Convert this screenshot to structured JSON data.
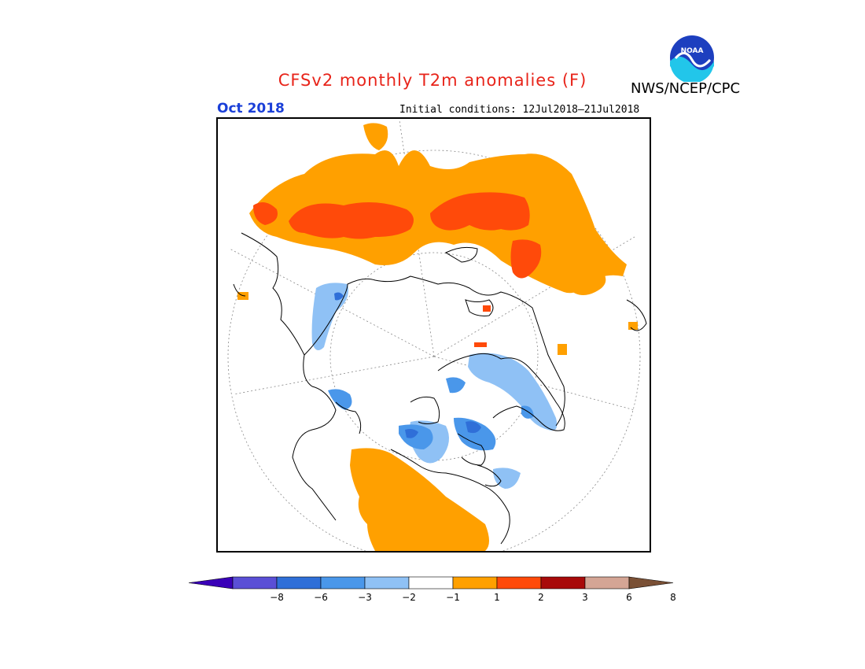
{
  "title": "CFSv2 monthly T2m anomalies (F)",
  "agency": "NWS/NCEP/CPC",
  "logo_text": "NOAA",
  "valid_month": "Oct 2018",
  "initial_conditions": "Initial conditions: 12Jul2018–21Jul2018",
  "colorbar": {
    "colors": [
      "#3a00b8",
      "#5a4fd6",
      "#2f6fd8",
      "#4a97ea",
      "#8fc1f5",
      "#ffffff",
      "#ffa000",
      "#ff4a0a",
      "#a80a0a",
      "#d4a595",
      "#7a5035"
    ],
    "labels": [
      "−8",
      "−6",
      "−3",
      "−2",
      "−1",
      "1",
      "2",
      "3",
      "6",
      "8"
    ]
  },
  "legend_colors": {
    "plus1_2": "#ffa000",
    "plus2_3": "#ff4a0a",
    "minus1_2": "#8fc1f5",
    "minus2_3": "#4a97ea",
    "minus3_6": "#2f6fd8"
  }
}
